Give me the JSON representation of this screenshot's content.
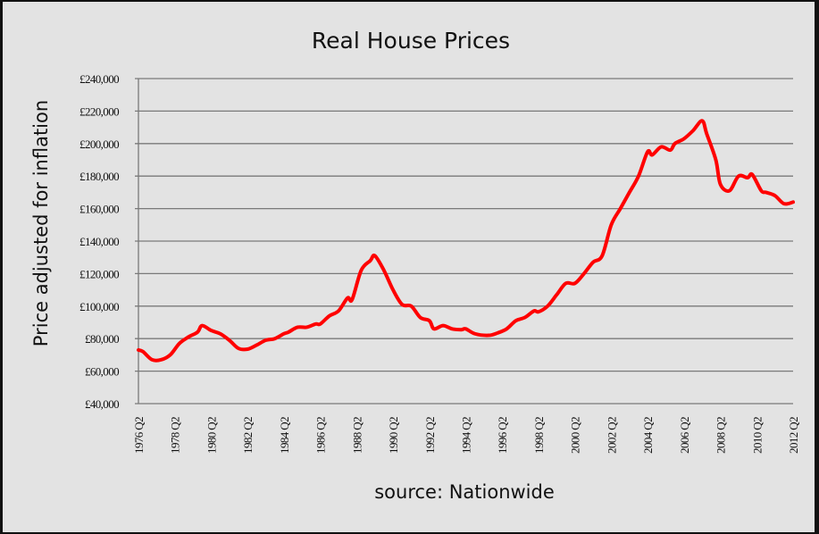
{
  "chart_data": {
    "type": "line",
    "title": "Real House Prices",
    "xlabel": "source: Nationwide",
    "ylabel": "Price adjusted for inflation",
    "ylim": [
      40000,
      240000
    ],
    "yticks": [
      "£240,000",
      "£220,000",
      "£200,000",
      "£180,000",
      "£160,000",
      "£140,000",
      "£120,000",
      "£100,000",
      "£80,000",
      "£60,000",
      "£40,000"
    ],
    "xticks": [
      "1976 Q2",
      "1978 Q2",
      "1980 Q2",
      "1982 Q2",
      "1984 Q2",
      "1986 Q2",
      "1988 Q2",
      "1990 Q2",
      "1992 Q2",
      "1994 Q2",
      "1996 Q2",
      "1998 Q2",
      "2000 Q2",
      "2002 Q2",
      "2004 Q2",
      "2006 Q2",
      "2008 Q2",
      "2010 Q2",
      "2012 Q2"
    ],
    "xlim": [
      "1976 Q2",
      "2012 Q2"
    ],
    "grid": true,
    "legend": "none",
    "series": [
      {
        "color": "#ff0000",
        "x": [
          "1976 Q2",
          "1976 Q3",
          "1977 Q1",
          "1977 Q3",
          "1978 Q1",
          "1978 Q3",
          "1979 Q1",
          "1979 Q3",
          "1979 Q4",
          "1980 Q2",
          "1980 Q4",
          "1981 Q2",
          "1981 Q4",
          "1982 Q2",
          "1982 Q4",
          "1983 Q2",
          "1983 Q4",
          "1984 Q2",
          "1984 Q3",
          "1985 Q1",
          "1985 Q3",
          "1986 Q1",
          "1986 Q2",
          "1986 Q4",
          "1987 Q2",
          "1987 Q4",
          "1988 Q1",
          "1988 Q3",
          "1989 Q1",
          "1989 Q2",
          "1989 Q4",
          "1990 Q2",
          "1990 Q4",
          "1991 Q2",
          "1991 Q4",
          "1992 Q2",
          "1992 Q3",
          "1993 Q1",
          "1993 Q3",
          "1994 Q1",
          "1994 Q2",
          "1994 Q4",
          "1995 Q3",
          "1996 Q1",
          "1996 Q3",
          "1997 Q1",
          "1997 Q3",
          "1998 Q1",
          "1998 Q2",
          "1998 Q4",
          "1999 Q2",
          "1999 Q4",
          "2000 Q2",
          "2000 Q4",
          "2001 Q2",
          "2001 Q4",
          "2002 Q2",
          "2002 Q4",
          "2003 Q2",
          "2003 Q4",
          "2004 Q2",
          "2004 Q3",
          "2005 Q1",
          "2005 Q3",
          "2005 Q4",
          "2006 Q2",
          "2006 Q4",
          "2007 Q2",
          "2007 Q3",
          "2008 Q1",
          "2008 Q2",
          "2008 Q4",
          "2009 Q2",
          "2009 Q4",
          "2010 Q1",
          "2010 Q3",
          "2010 Q4",
          "2011 Q2",
          "2011 Q4",
          "2012 Q2"
        ],
        "values": [
          73000,
          72000,
          67000,
          67000,
          70000,
          77000,
          81000,
          84000,
          88000,
          85000,
          83000,
          79000,
          74000,
          73500,
          76000,
          79000,
          80000,
          83000,
          84000,
          87000,
          87000,
          89000,
          89000,
          94000,
          97000,
          105000,
          104000,
          122000,
          128000,
          131000,
          122000,
          110000,
          101000,
          100000,
          93000,
          91000,
          86000,
          88000,
          86000,
          85500,
          86000,
          83000,
          82000,
          83500,
          86000,
          91000,
          93000,
          97000,
          96500,
          100000,
          107000,
          114000,
          114000,
          120000,
          127000,
          131000,
          150000,
          160000,
          170000,
          180000,
          195000,
          193000,
          198000,
          196000,
          200000,
          203000,
          208000,
          214000,
          206000,
          190000,
          175000,
          171000,
          180000,
          179000,
          181000,
          171000,
          170000,
          168000,
          163000,
          164000
        ]
      }
    ]
  }
}
